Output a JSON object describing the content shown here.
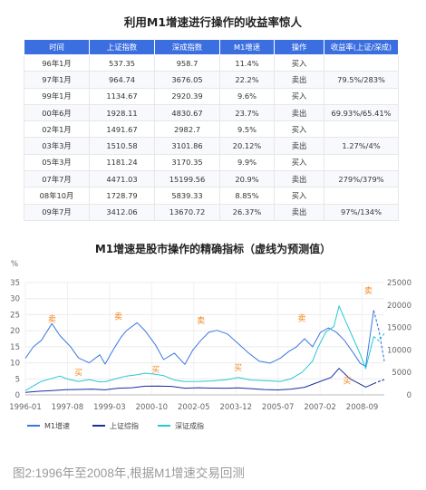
{
  "table": {
    "title": "利用M1增速进行操作的收益率惊人",
    "headers": [
      "时间",
      "上证指数",
      "深成指数",
      "M1增速",
      "操作",
      "收益率(上证/深成)"
    ],
    "rows": [
      [
        "96年1月",
        "537.35",
        "958.7",
        "11.4%",
        "买入",
        ""
      ],
      [
        "97年1月",
        "964.74",
        "3676.05",
        "22.2%",
        "卖出",
        "79.5%/283%"
      ],
      [
        "99年1月",
        "1134.67",
        "2920.39",
        "9.6%",
        "买入",
        ""
      ],
      [
        "00年6月",
        "1928.11",
        "4830.67",
        "23.7%",
        "卖出",
        "69.93%/65.41%"
      ],
      [
        "02年1月",
        "1491.67",
        "2982.7",
        "9.5%",
        "买入",
        ""
      ],
      [
        "03年3月",
        "1510.58",
        "3101.86",
        "20.12%",
        "卖出",
        "1.27%/4%"
      ],
      [
        "05年3月",
        "1181.24",
        "3170.35",
        "9.9%",
        "买入",
        ""
      ],
      [
        "07年7月",
        "4471.03",
        "15199.56",
        "20.9%",
        "卖出",
        "279%/379%"
      ],
      [
        "08年10月",
        "1728.79",
        "5839.33",
        "8.85%",
        "买入",
        ""
      ],
      [
        "09年7月",
        "3412.06",
        "13670.72",
        "26.37%",
        "卖出",
        "97%/134%"
      ]
    ]
  },
  "chart_data": {
    "type": "line",
    "title": "M1增速是股市操作的精确指标（虚线为预测值）",
    "left_axis_unit": "%",
    "left_ylim": [
      0,
      35
    ],
    "left_ticks": [
      0,
      5,
      10,
      15,
      20,
      25,
      30,
      35
    ],
    "right_ylim": [
      0,
      25000
    ],
    "right_ticks": [
      0,
      5000,
      10000,
      15000,
      20000,
      25000
    ],
    "xlim": [
      1996.0,
      2009.5
    ],
    "x_tick_labels": [
      "1996-01",
      "1997-08",
      "1999-03",
      "2000-10",
      "2002-05",
      "2003-12",
      "2005-07",
      "2007-02",
      "2008-09"
    ],
    "x_tick_values": [
      1996.0,
      1997.583,
      1999.167,
      2000.75,
      2002.333,
      2003.917,
      2005.5,
      2007.083,
      2008.667
    ],
    "grid": true,
    "legend_position": "bottom-left",
    "annotations": [
      {
        "text": "卖",
        "x": 1997.0,
        "y": 22.2
      },
      {
        "text": "买",
        "x": 1998.0,
        "y": 5.5
      },
      {
        "text": "卖",
        "x": 1999.5,
        "y": 23.0
      },
      {
        "text": "买",
        "x": 2000.9,
        "y": 6.5
      },
      {
        "text": "卖",
        "x": 2002.6,
        "y": 21.8
      },
      {
        "text": "买",
        "x": 2004.0,
        "y": 7.0
      },
      {
        "text": "卖",
        "x": 2006.4,
        "y": 22.5
      },
      {
        "text": "买",
        "x": 2008.1,
        "y": 3.0
      },
      {
        "text": "卖",
        "x": 2008.9,
        "y": 31.0
      }
    ],
    "series": [
      {
        "name": "M1增速",
        "axis": "left",
        "color": "#3a78e0",
        "x": [
          1996.0,
          1996.3,
          1996.6,
          1997.0,
          1997.3,
          1997.7,
          1998.0,
          1998.4,
          1998.8,
          1999.0,
          1999.3,
          1999.6,
          1999.8,
          2000.2,
          2000.5,
          2000.9,
          2001.2,
          2001.6,
          2002.0,
          2002.3,
          2002.6,
          2002.9,
          2003.2,
          2003.6,
          2004.0,
          2004.4,
          2004.8,
          2005.2,
          2005.6,
          2005.9,
          2006.2,
          2006.5,
          2006.8,
          2007.1,
          2007.4,
          2007.7,
          2008.0,
          2008.3,
          2008.6,
          2008.8,
          2009.1
        ],
        "values": [
          11.4,
          15.0,
          17.0,
          22.2,
          18.5,
          15.0,
          11.5,
          10.0,
          12.5,
          9.6,
          14.0,
          18.0,
          20.0,
          22.5,
          20.0,
          15.5,
          11.0,
          13.0,
          9.5,
          14.0,
          17.0,
          19.5,
          20.12,
          19.0,
          16.0,
          13.0,
          10.5,
          9.9,
          11.5,
          13.5,
          15.0,
          17.5,
          15.0,
          19.5,
          20.9,
          19.5,
          17.0,
          13.5,
          9.8,
          8.85,
          26.37
        ]
      },
      {
        "name": "M1增速(预测)",
        "axis": "left",
        "color": "#3a78e0",
        "dashed": true,
        "x": [
          2009.1,
          2009.3,
          2009.5
        ],
        "values": [
          26.37,
          20.0,
          10.5
        ]
      },
      {
        "name": "上证综指",
        "axis": "right",
        "color": "#1a2f9e",
        "x": [
          1996.0,
          1996.5,
          1997.0,
          1997.5,
          1998.0,
          1998.5,
          1999.0,
          1999.5,
          2000.0,
          2000.5,
          2001.0,
          2001.5,
          2002.0,
          2002.5,
          2003.0,
          2003.5,
          2004.0,
          2004.5,
          2005.0,
          2005.5,
          2006.0,
          2006.5,
          2007.0,
          2007.5,
          2007.8,
          2008.2,
          2008.8,
          2009.1
        ],
        "values": [
          537,
          800,
          965,
          1150,
          1200,
          1300,
          1135,
          1500,
          1600,
          1928,
          1950,
          1900,
          1492,
          1600,
          1511,
          1500,
          1550,
          1400,
          1181,
          1100,
          1300,
          1700,
          2800,
          3900,
          5900,
          3600,
          1729,
          2500
        ]
      },
      {
        "name": "上证综指(预测)",
        "axis": "right",
        "color": "#1a2f9e",
        "dashed": true,
        "x": [
          2009.1,
          2009.3,
          2009.5
        ],
        "values": [
          2500,
          3000,
          3412
        ]
      },
      {
        "name": "深证成指",
        "axis": "right",
        "color": "#28c6d8",
        "x": [
          1996.0,
          1996.3,
          1996.6,
          1997.0,
          1997.3,
          1997.6,
          1998.0,
          1998.4,
          1998.8,
          1999.0,
          1999.4,
          1999.8,
          2000.2,
          2000.5,
          2000.9,
          2001.2,
          2001.6,
          2002.0,
          2002.5,
          2003.0,
          2003.6,
          2004.0,
          2004.5,
          2005.0,
          2005.6,
          2006.0,
          2006.4,
          2006.8,
          2007.0,
          2007.3,
          2007.6,
          2007.8,
          2008.0,
          2008.3,
          2008.6,
          2008.8,
          2009.1
        ],
        "values": [
          959,
          2000,
          3000,
          3676,
          4200,
          3500,
          3000,
          3400,
          2900,
          2920,
          3600,
          4200,
          4500,
          4831,
          4600,
          4300,
          3300,
          2983,
          3000,
          3102,
          3400,
          3900,
          3300,
          3170,
          3000,
          3600,
          5000,
          7500,
          10500,
          14000,
          15200,
          19800,
          17000,
          13000,
          9000,
          5839,
          13000
        ]
      },
      {
        "name": "深证成指(预测)",
        "axis": "right",
        "color": "#28c6d8",
        "dashed": true,
        "x": [
          2009.1,
          2009.3,
          2009.5
        ],
        "values": [
          13000,
          12000,
          13671
        ]
      }
    ],
    "legend": [
      {
        "label": "M1增速",
        "color": "#3a78e0"
      },
      {
        "label": "上证综指",
        "color": "#1a2f9e"
      },
      {
        "label": "深证成指",
        "color": "#28c6d8"
      }
    ],
    "left_color": "#3a78e0"
  },
  "caption": "图2:1996年至2008年,根据M1增速交易回测"
}
